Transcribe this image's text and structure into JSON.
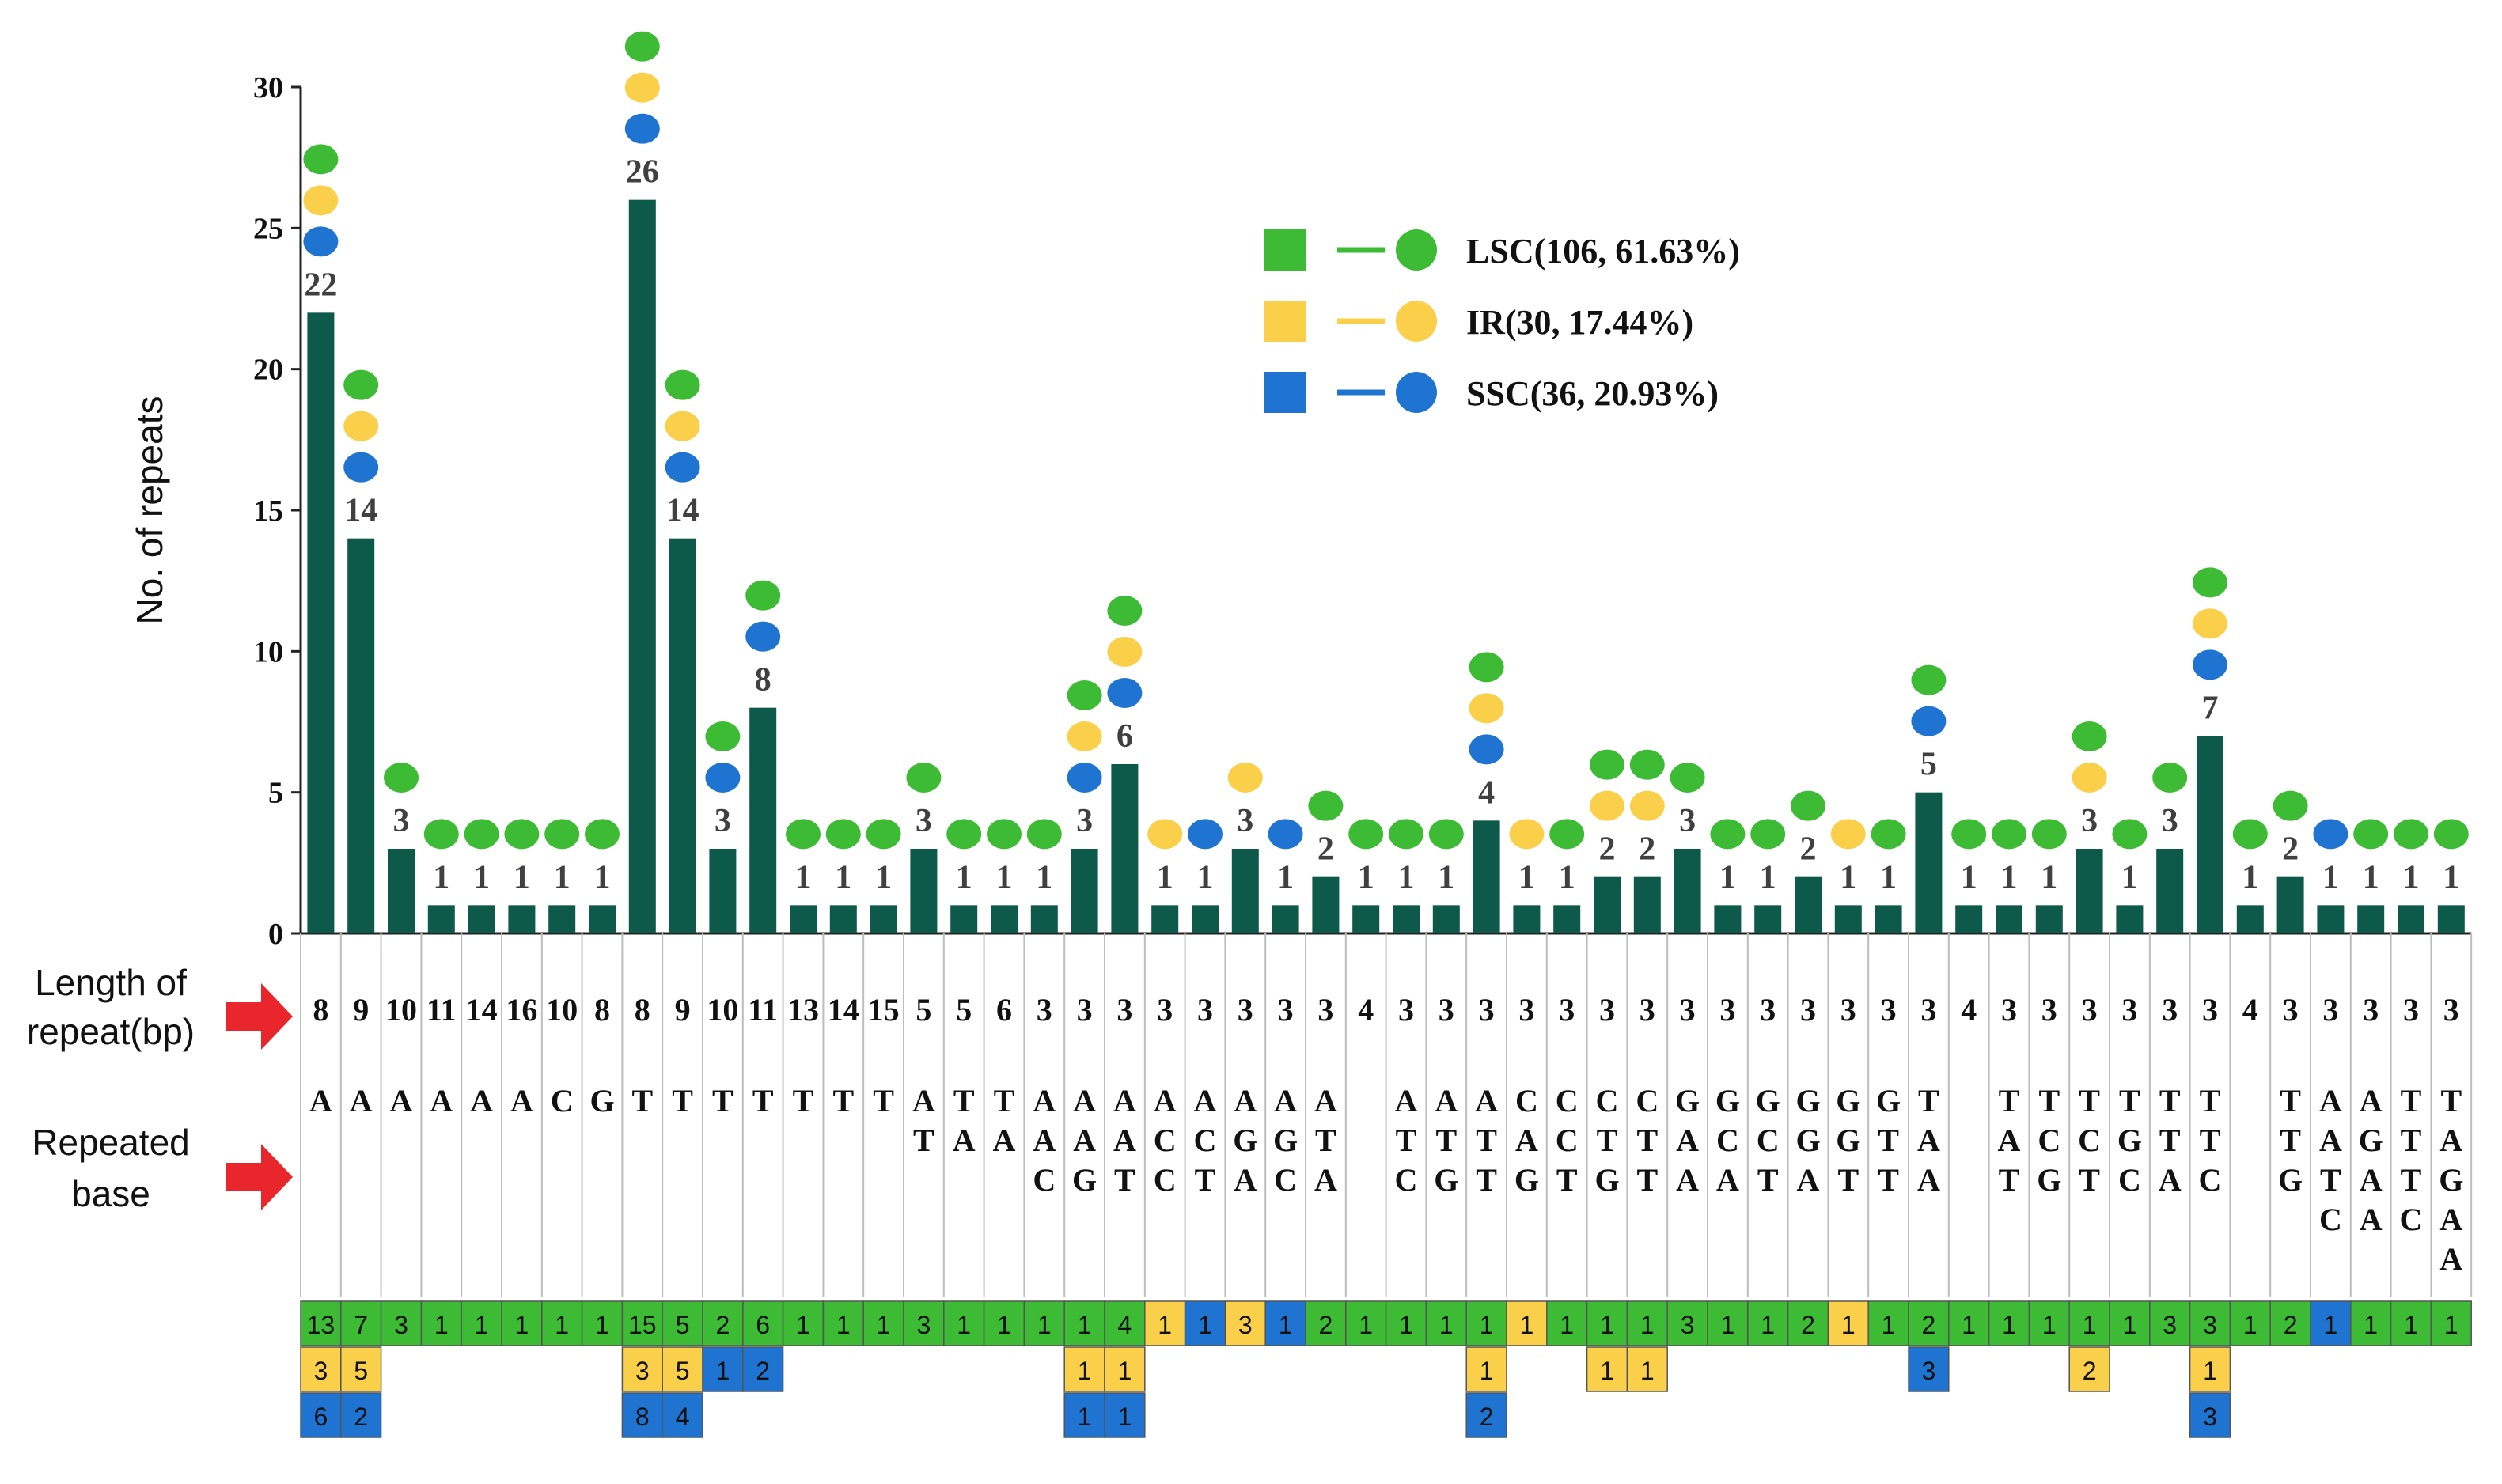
{
  "chart_data": {
    "type": "bar",
    "ylabel": "No. of repeats",
    "ylim": [
      0,
      30
    ],
    "yticks": [
      "0",
      "5",
      "10",
      "15",
      "20",
      "25",
      "30"
    ],
    "row_labels": {
      "length": "Length of repeat(bp)",
      "base": "Repeated base"
    },
    "colors": {
      "bar": "#0d5a4b",
      "LSC": "#3dbb34",
      "IR": "#fad04a",
      "SSC": "#1f74d1",
      "arrow": "#e8262b"
    },
    "legend": [
      {
        "key": "LSC",
        "label": "LSC(106, 61.63%)"
      },
      {
        "key": "IR",
        "label": "IR(30, 17.44%)"
      },
      {
        "key": "SSC",
        "label": "SSC(36, 20.93%)"
      }
    ],
    "categories": [
      {
        "len": "8",
        "base": "A",
        "total": "22",
        "LSC": "13",
        "IR": "3",
        "SSC": "6"
      },
      {
        "len": "9",
        "base": "A",
        "total": "14",
        "LSC": "7",
        "IR": "5",
        "SSC": "2"
      },
      {
        "len": "10",
        "base": "A",
        "total": "3",
        "LSC": "3",
        "IR": "",
        "SSC": ""
      },
      {
        "len": "11",
        "base": "A",
        "total": "1",
        "LSC": "1",
        "IR": "",
        "SSC": ""
      },
      {
        "len": "14",
        "base": "A",
        "total": "1",
        "LSC": "1",
        "IR": "",
        "SSC": ""
      },
      {
        "len": "16",
        "base": "A",
        "total": "1",
        "LSC": "1",
        "IR": "",
        "SSC": ""
      },
      {
        "len": "10",
        "base": "C",
        "total": "1",
        "LSC": "1",
        "IR": "",
        "SSC": ""
      },
      {
        "len": "8",
        "base": "G",
        "total": "1",
        "LSC": "1",
        "IR": "",
        "SSC": ""
      },
      {
        "len": "8",
        "base": "T",
        "total": "26",
        "LSC": "15",
        "IR": "3",
        "SSC": "8"
      },
      {
        "len": "9",
        "base": "T",
        "total": "14",
        "LSC": "5",
        "IR": "5",
        "SSC": "4"
      },
      {
        "len": "10",
        "base": "T",
        "total": "3",
        "LSC": "2",
        "IR": "",
        "SSC": "1"
      },
      {
        "len": "11",
        "base": "T",
        "total": "8",
        "LSC": "6",
        "IR": "",
        "SSC": "2"
      },
      {
        "len": "13",
        "base": "T",
        "total": "1",
        "LSC": "1",
        "IR": "",
        "SSC": ""
      },
      {
        "len": "14",
        "base": "T",
        "total": "1",
        "LSC": "1",
        "IR": "",
        "SSC": ""
      },
      {
        "len": "15",
        "base": "T",
        "total": "1",
        "LSC": "1",
        "IR": "",
        "SSC": ""
      },
      {
        "len": "5",
        "base": "AT",
        "total": "3",
        "LSC": "3",
        "IR": "",
        "SSC": ""
      },
      {
        "len": "5",
        "base": "TA",
        "total": "1",
        "LSC": "1",
        "IR": "",
        "SSC": ""
      },
      {
        "len": "6",
        "base": "TA",
        "total": "1",
        "LSC": "1",
        "IR": "",
        "SSC": ""
      },
      {
        "len": "3",
        "base": "AAC",
        "total": "1",
        "LSC": "1",
        "IR": "",
        "SSC": ""
      },
      {
        "len": "3",
        "base": "AAG",
        "total": "3",
        "LSC": "1",
        "IR": "1",
        "SSC": "1"
      },
      {
        "len": "3",
        "base": "AAT",
        "total": "6",
        "LSC": "4",
        "IR": "1",
        "SSC": "1"
      },
      {
        "len": "3",
        "base": "ACC",
        "total": "1",
        "LSC": "",
        "IR": "1",
        "SSC": ""
      },
      {
        "len": "3",
        "base": "ACT",
        "total": "1",
        "LSC": "",
        "IR": "",
        "SSC": "1"
      },
      {
        "len": "3",
        "base": "AGA",
        "total": "3",
        "LSC": "",
        "IR": "3",
        "SSC": ""
      },
      {
        "len": "3",
        "base": "AGC",
        "total": "1",
        "LSC": "",
        "IR": "",
        "SSC": "1"
      },
      {
        "len": "3",
        "base": "ATA",
        "total": "2",
        "LSC": "2",
        "IR": "",
        "SSC": ""
      },
      {
        "len": "4",
        "base": "",
        "total": "1",
        "LSC": "1",
        "IR": "",
        "SSC": ""
      },
      {
        "len": "3",
        "base": "ATC",
        "total": "1",
        "LSC": "1",
        "IR": "",
        "SSC": ""
      },
      {
        "len": "3",
        "base": "ATG",
        "total": "1",
        "LSC": "1",
        "IR": "",
        "SSC": ""
      },
      {
        "len": "3",
        "base": "ATT",
        "total": "4",
        "LSC": "1",
        "IR": "1",
        "SSC": "2"
      },
      {
        "len": "3",
        "base": "CAG",
        "total": "1",
        "LSC": "",
        "IR": "1",
        "SSC": ""
      },
      {
        "len": "3",
        "base": "CCT",
        "total": "1",
        "LSC": "1",
        "IR": "",
        "SSC": ""
      },
      {
        "len": "3",
        "base": "CTG",
        "total": "2",
        "LSC": "1",
        "IR": "1",
        "SSC": ""
      },
      {
        "len": "3",
        "base": "CTT",
        "total": "2",
        "LSC": "1",
        "IR": "1",
        "SSC": ""
      },
      {
        "len": "3",
        "base": "GAA",
        "total": "3",
        "LSC": "3",
        "IR": "",
        "SSC": ""
      },
      {
        "len": "3",
        "base": "GCA",
        "total": "1",
        "LSC": "1",
        "IR": "",
        "SSC": ""
      },
      {
        "len": "3",
        "base": "GCT",
        "total": "1",
        "LSC": "1",
        "IR": "",
        "SSC": ""
      },
      {
        "len": "3",
        "base": "GGA",
        "total": "2",
        "LSC": "2",
        "IR": "",
        "SSC": ""
      },
      {
        "len": "3",
        "base": "GGT",
        "total": "1",
        "LSC": "",
        "IR": "1",
        "SSC": ""
      },
      {
        "len": "3",
        "base": "GTT",
        "total": "1",
        "LSC": "1",
        "IR": "",
        "SSC": ""
      },
      {
        "len": "3",
        "base": "TAA",
        "total": "5",
        "LSC": "2",
        "IR": "",
        "SSC": "3"
      },
      {
        "len": "4",
        "base": "",
        "total": "1",
        "LSC": "1",
        "IR": "",
        "SSC": ""
      },
      {
        "len": "3",
        "base": "TAT",
        "total": "1",
        "LSC": "1",
        "IR": "",
        "SSC": ""
      },
      {
        "len": "3",
        "base": "TCG",
        "total": "1",
        "LSC": "1",
        "IR": "",
        "SSC": ""
      },
      {
        "len": "3",
        "base": "TCT",
        "total": "3",
        "LSC": "1",
        "IR": "2",
        "SSC": ""
      },
      {
        "len": "3",
        "base": "TGC",
        "total": "1",
        "LSC": "1",
        "IR": "",
        "SSC": ""
      },
      {
        "len": "3",
        "base": "TTA",
        "total": "3",
        "LSC": "3",
        "IR": "",
        "SSC": ""
      },
      {
        "len": "3",
        "base": "TTC",
        "total": "7",
        "LSC": "3",
        "IR": "1",
        "SSC": "3"
      },
      {
        "len": "4",
        "base": "",
        "total": "1",
        "LSC": "1",
        "IR": "",
        "SSC": ""
      },
      {
        "len": "3",
        "base": "TTG",
        "total": "2",
        "LSC": "2",
        "IR": "",
        "SSC": ""
      },
      {
        "len": "3",
        "base": "AATC",
        "total": "1",
        "LSC": "",
        "IR": "",
        "SSC": "1"
      },
      {
        "len": "3",
        "base": "AGAA",
        "total": "1",
        "LSC": "1",
        "IR": "",
        "SSC": ""
      },
      {
        "len": "3",
        "base": "TTTC",
        "total": "1",
        "LSC": "1",
        "IR": "",
        "SSC": ""
      },
      {
        "len": "3",
        "base": "TAGAA",
        "total": "1",
        "LSC": "1",
        "IR": "",
        "SSC": ""
      }
    ]
  }
}
